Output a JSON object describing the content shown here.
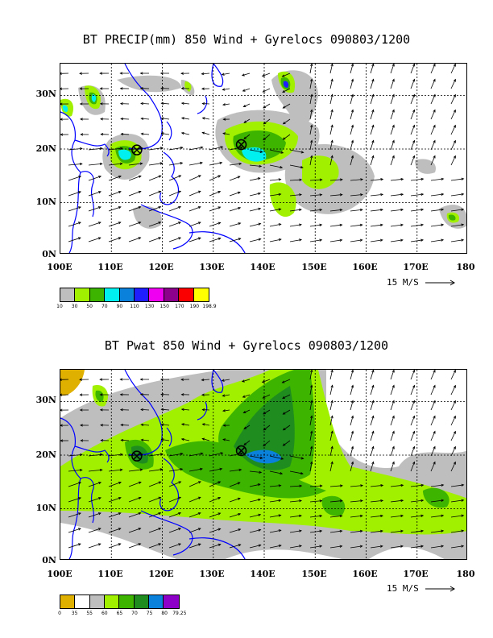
{
  "panels": [
    {
      "id": "precip",
      "title": "BT PRECIP(mm) 850 Wind + Gyrelocs 090803/1200",
      "lat_labels": [
        "30N",
        "20N",
        "10N",
        "0N"
      ],
      "lon_labels": [
        "100E",
        "110E",
        "120E",
        "130E",
        "140E",
        "150E",
        "160E",
        "170E",
        "180"
      ],
      "vector_ref": "15 M/S",
      "legend": {
        "colors": [
          "#bebebe",
          "#a0f000",
          "#3cb400",
          "#00f0f0",
          "#0a82dc",
          "#1e1eff",
          "#f000f0",
          "#8c008c",
          "#fa0000",
          "#ffff00"
        ],
        "labels": [
          "10",
          "30",
          "50",
          "70",
          "90",
          "110",
          "130",
          "150",
          "170",
          "190",
          "198.9"
        ]
      },
      "gyre_locs": [
        {
          "lon": 115,
          "lat": 19.5
        },
        {
          "lon": 135.5,
          "lat": 20.5
        }
      ]
    },
    {
      "id": "pwat",
      "title": "BT Pwat 850 Wind + Gyrelocs 090803/1200",
      "lat_labels": [
        "30N",
        "20N",
        "10N",
        "0N"
      ],
      "lon_labels": [
        "100E",
        "110E",
        "120E",
        "130E",
        "140E",
        "150E",
        "160E",
        "170E",
        "180"
      ],
      "vector_ref": "15 M/S",
      "legend": {
        "colors": [
          "#e0b000",
          "#ffffff",
          "#bebebe",
          "#a0f000",
          "#3cb400",
          "#1e8c1e",
          "#0a82dc",
          "#8c00c8"
        ],
        "labels": [
          "0",
          "35",
          "55",
          "60",
          "65",
          "70",
          "75",
          "80",
          "79.25"
        ]
      },
      "gyre_locs": [
        {
          "lon": 115,
          "lat": 19.5
        },
        {
          "lon": 135.5,
          "lat": 20.5
        }
      ]
    }
  ]
}
